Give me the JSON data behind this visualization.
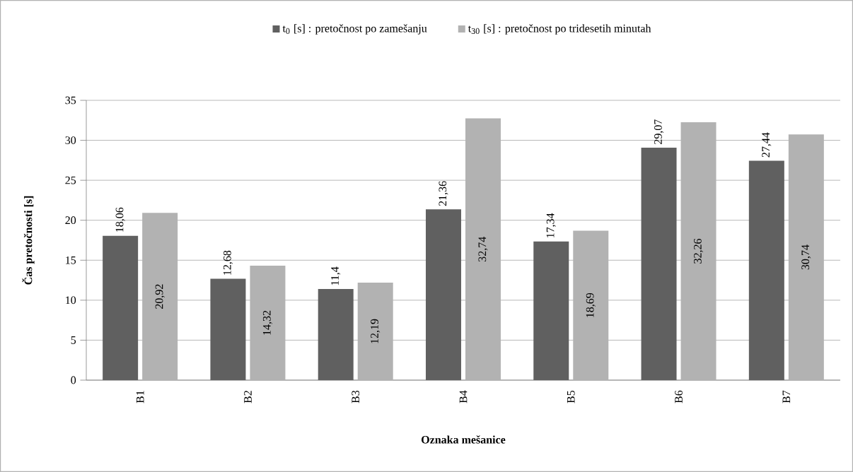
{
  "chart_data": {
    "type": "bar",
    "xlabel": "Oznaka mešanice",
    "ylabel": "Čas pretočnosti [s]",
    "categories": [
      "B1",
      "B2",
      "B3",
      "B4",
      "B5",
      "B6",
      "B7"
    ],
    "series": [
      {
        "name": "t$_{0}$ [s] : pretočnost po zamešanju",
        "color": "#606060",
        "values": [
          18.06,
          12.68,
          11.4,
          21.36,
          17.34,
          29.07,
          27.44
        ],
        "value_labels": [
          "18,06",
          "12,68",
          "11,4",
          "21,36",
          "17,34",
          "29,07",
          "27,44"
        ]
      },
      {
        "name": "t$_{30}$ [s] : pretočnost po tridesetih minutah",
        "color": "#b2b2b2",
        "values": [
          20.92,
          14.32,
          12.19,
          32.74,
          18.69,
          32.26,
          30.74
        ],
        "value_labels": [
          "20,92",
          "14,32",
          "12,19",
          "32,74",
          "18,69",
          "32,26",
          "30,74"
        ]
      }
    ],
    "ylim": [
      0,
      35
    ],
    "yticks": [
      0,
      5,
      10,
      15,
      20,
      25,
      30,
      35
    ],
    "grid": "y",
    "legend": "top"
  }
}
